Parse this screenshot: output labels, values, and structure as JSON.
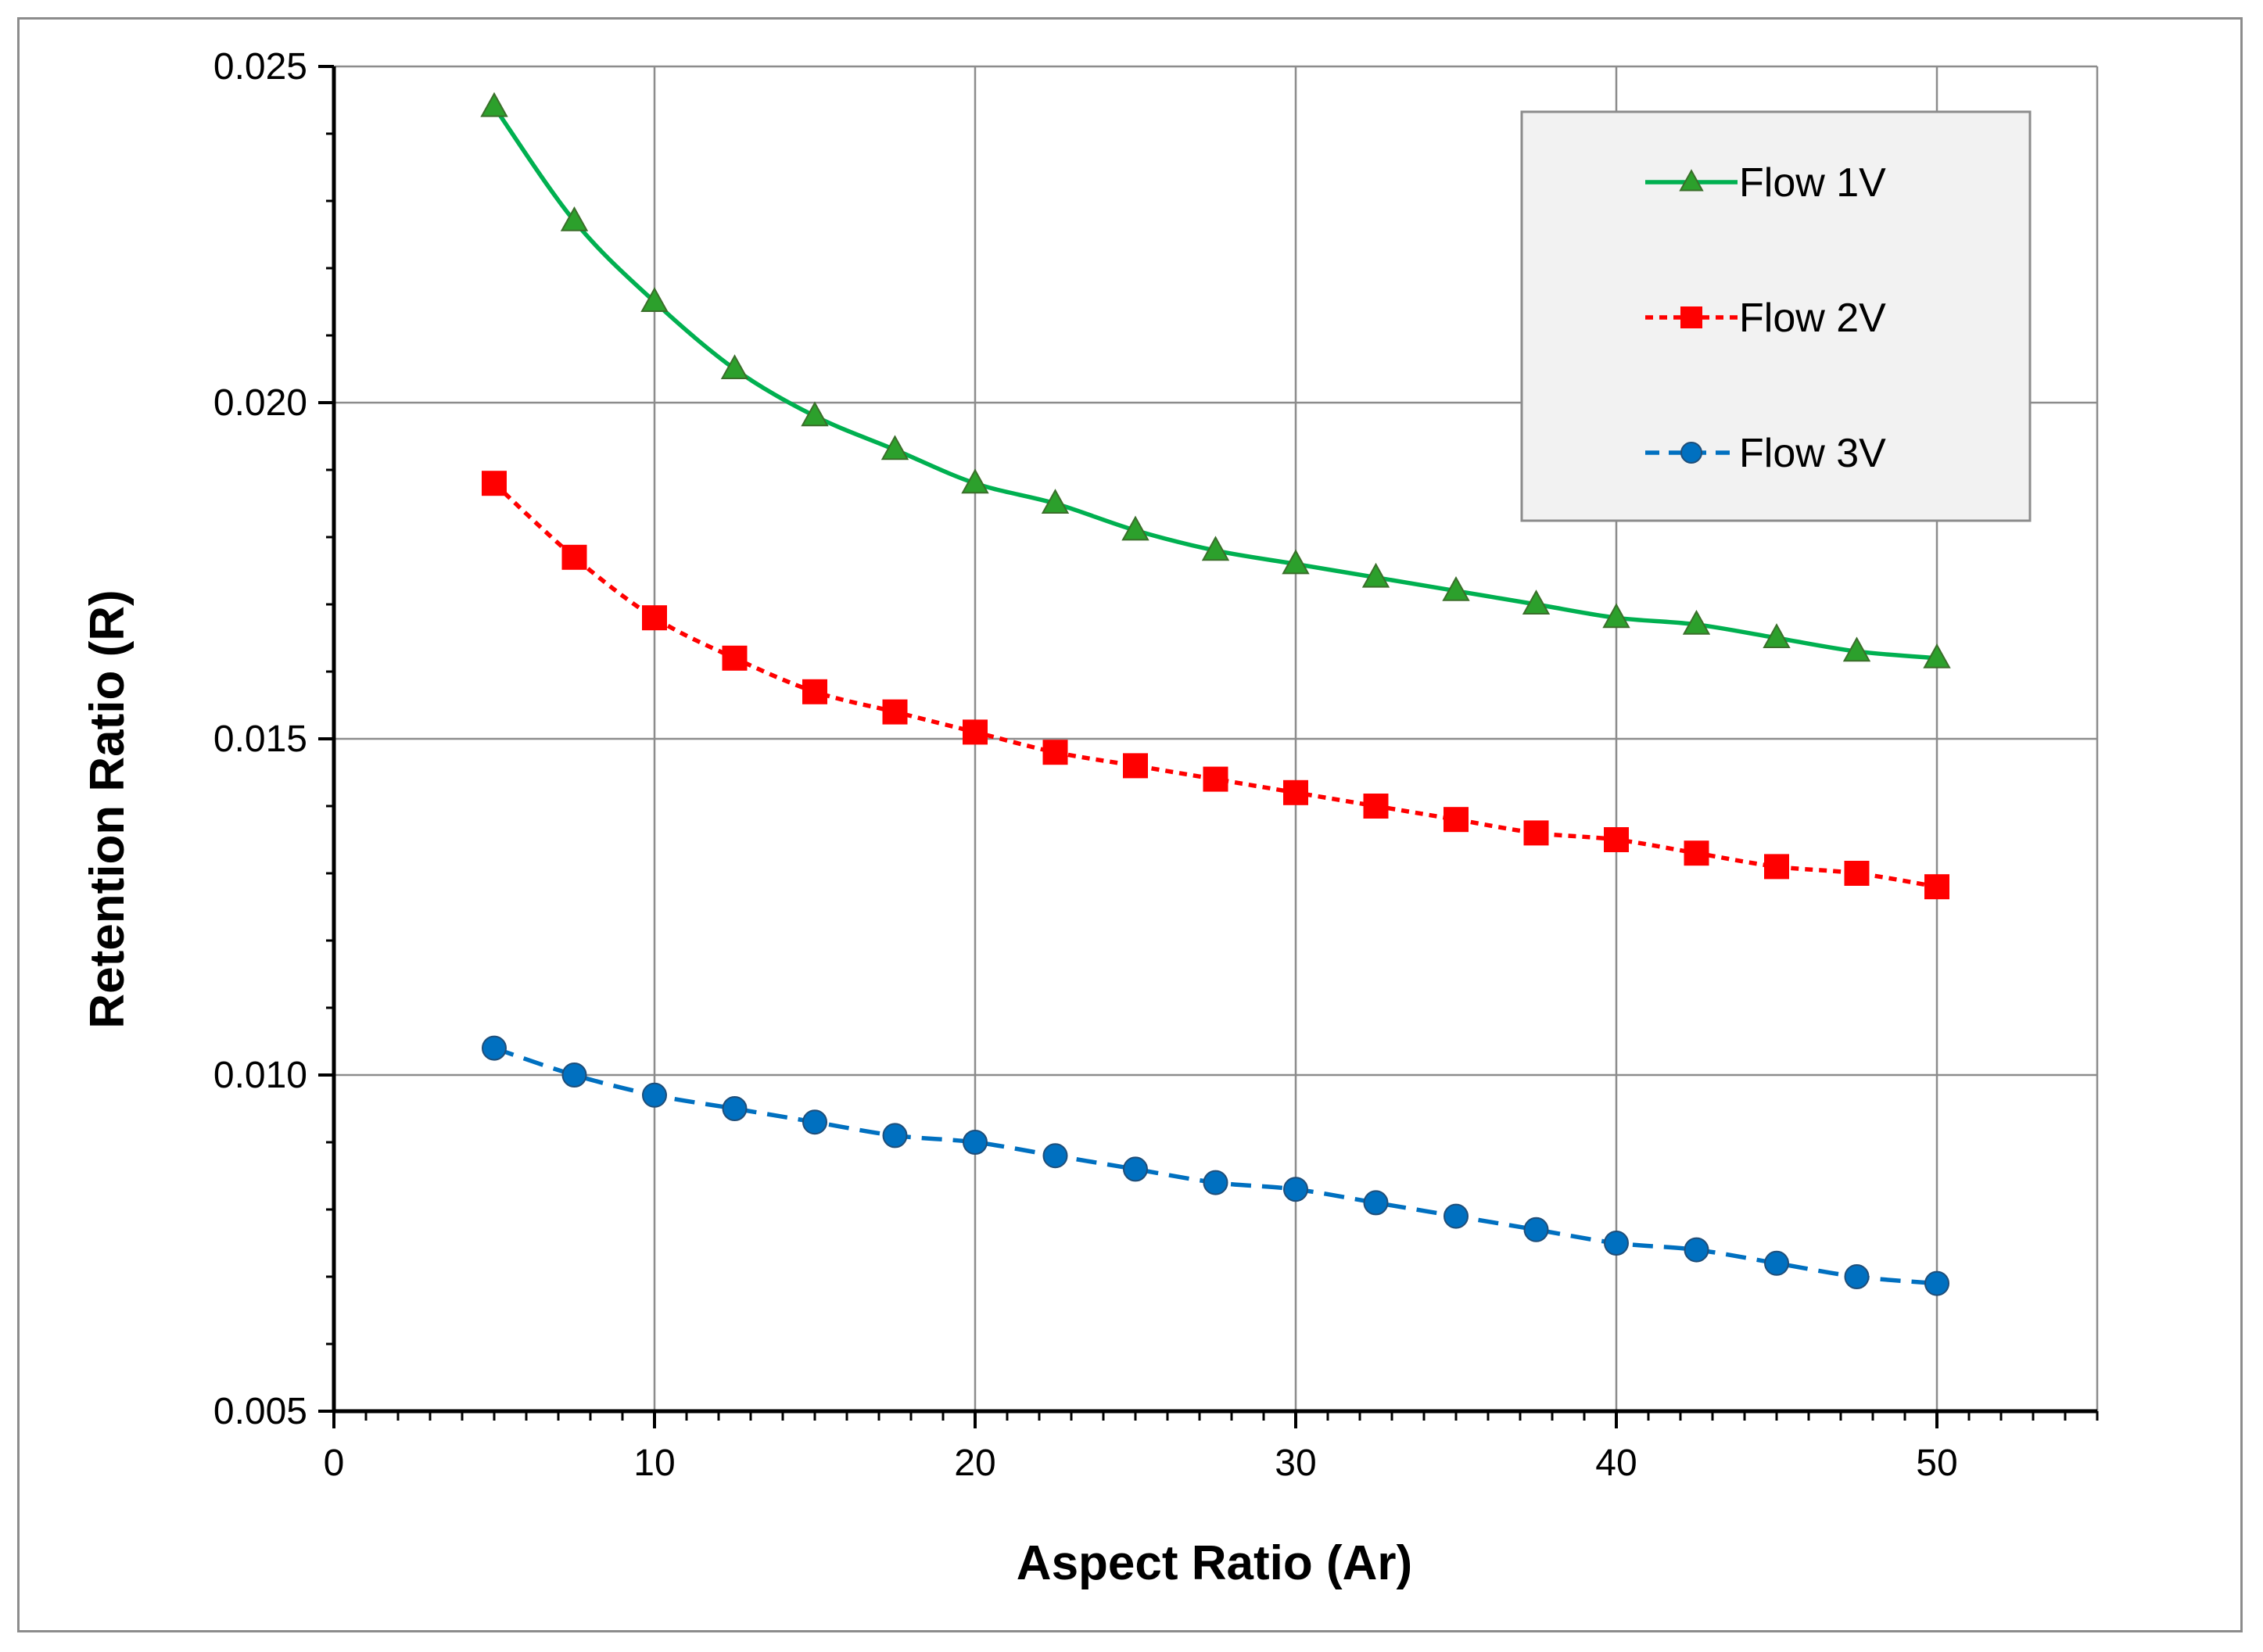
{
  "chart_data": {
    "type": "line",
    "title": "",
    "xlabel": "Aspect Ratio (Ar)",
    "ylabel": "Retention Ratio (R)",
    "xlim": [
      0,
      55
    ],
    "ylim": [
      0.005,
      0.025
    ],
    "xticks": [
      0,
      10,
      20,
      30,
      40,
      50
    ],
    "xtick_labels": [
      "0",
      "10",
      "20",
      "30",
      "40",
      "50"
    ],
    "yticks": [
      0.005,
      0.01,
      0.015,
      0.02,
      0.025
    ],
    "ytick_labels": [
      "0.005",
      "0.010",
      "0.015",
      "0.020",
      "0.025"
    ],
    "grid": true,
    "legend_position": "top-right",
    "x": [
      5,
      7.5,
      10,
      12.5,
      15,
      17.5,
      20,
      22.5,
      25,
      27.5,
      30,
      32.5,
      35,
      37.5,
      40,
      42.5,
      45,
      47.5,
      50
    ],
    "series": [
      {
        "name": "Flow 1V",
        "color": "#00b050",
        "marker": "triangle",
        "marker_color": "#2ca02c",
        "line_style": "solid",
        "values": [
          0.0244,
          0.0227,
          0.0215,
          0.0205,
          0.0198,
          0.0193,
          0.0188,
          0.0185,
          0.0181,
          0.0178,
          0.0176,
          0.0174,
          0.0172,
          0.017,
          0.0168,
          0.0167,
          0.0165,
          0.0163,
          0.0162
        ]
      },
      {
        "name": "Flow 2V",
        "color": "#ff0000",
        "marker": "square",
        "marker_color": "#ff0000",
        "line_style": "dotted",
        "values": [
          0.0188,
          0.0177,
          0.0168,
          0.0162,
          0.0157,
          0.0154,
          0.0151,
          0.0148,
          0.0146,
          0.0144,
          0.0142,
          0.014,
          0.0138,
          0.0136,
          0.0135,
          0.0133,
          0.0131,
          0.013,
          0.0128
        ]
      },
      {
        "name": "Flow 3V",
        "color": "#0070c0",
        "marker": "circle",
        "marker_color": "#0070c0",
        "line_style": "dashed",
        "values": [
          0.0104,
          0.01,
          0.0097,
          0.0095,
          0.0093,
          0.0091,
          0.009,
          0.0088,
          0.0086,
          0.0084,
          0.0083,
          0.0081,
          0.0079,
          0.0077,
          0.0075,
          0.0074,
          0.0072,
          0.007,
          0.0069
        ]
      }
    ]
  }
}
